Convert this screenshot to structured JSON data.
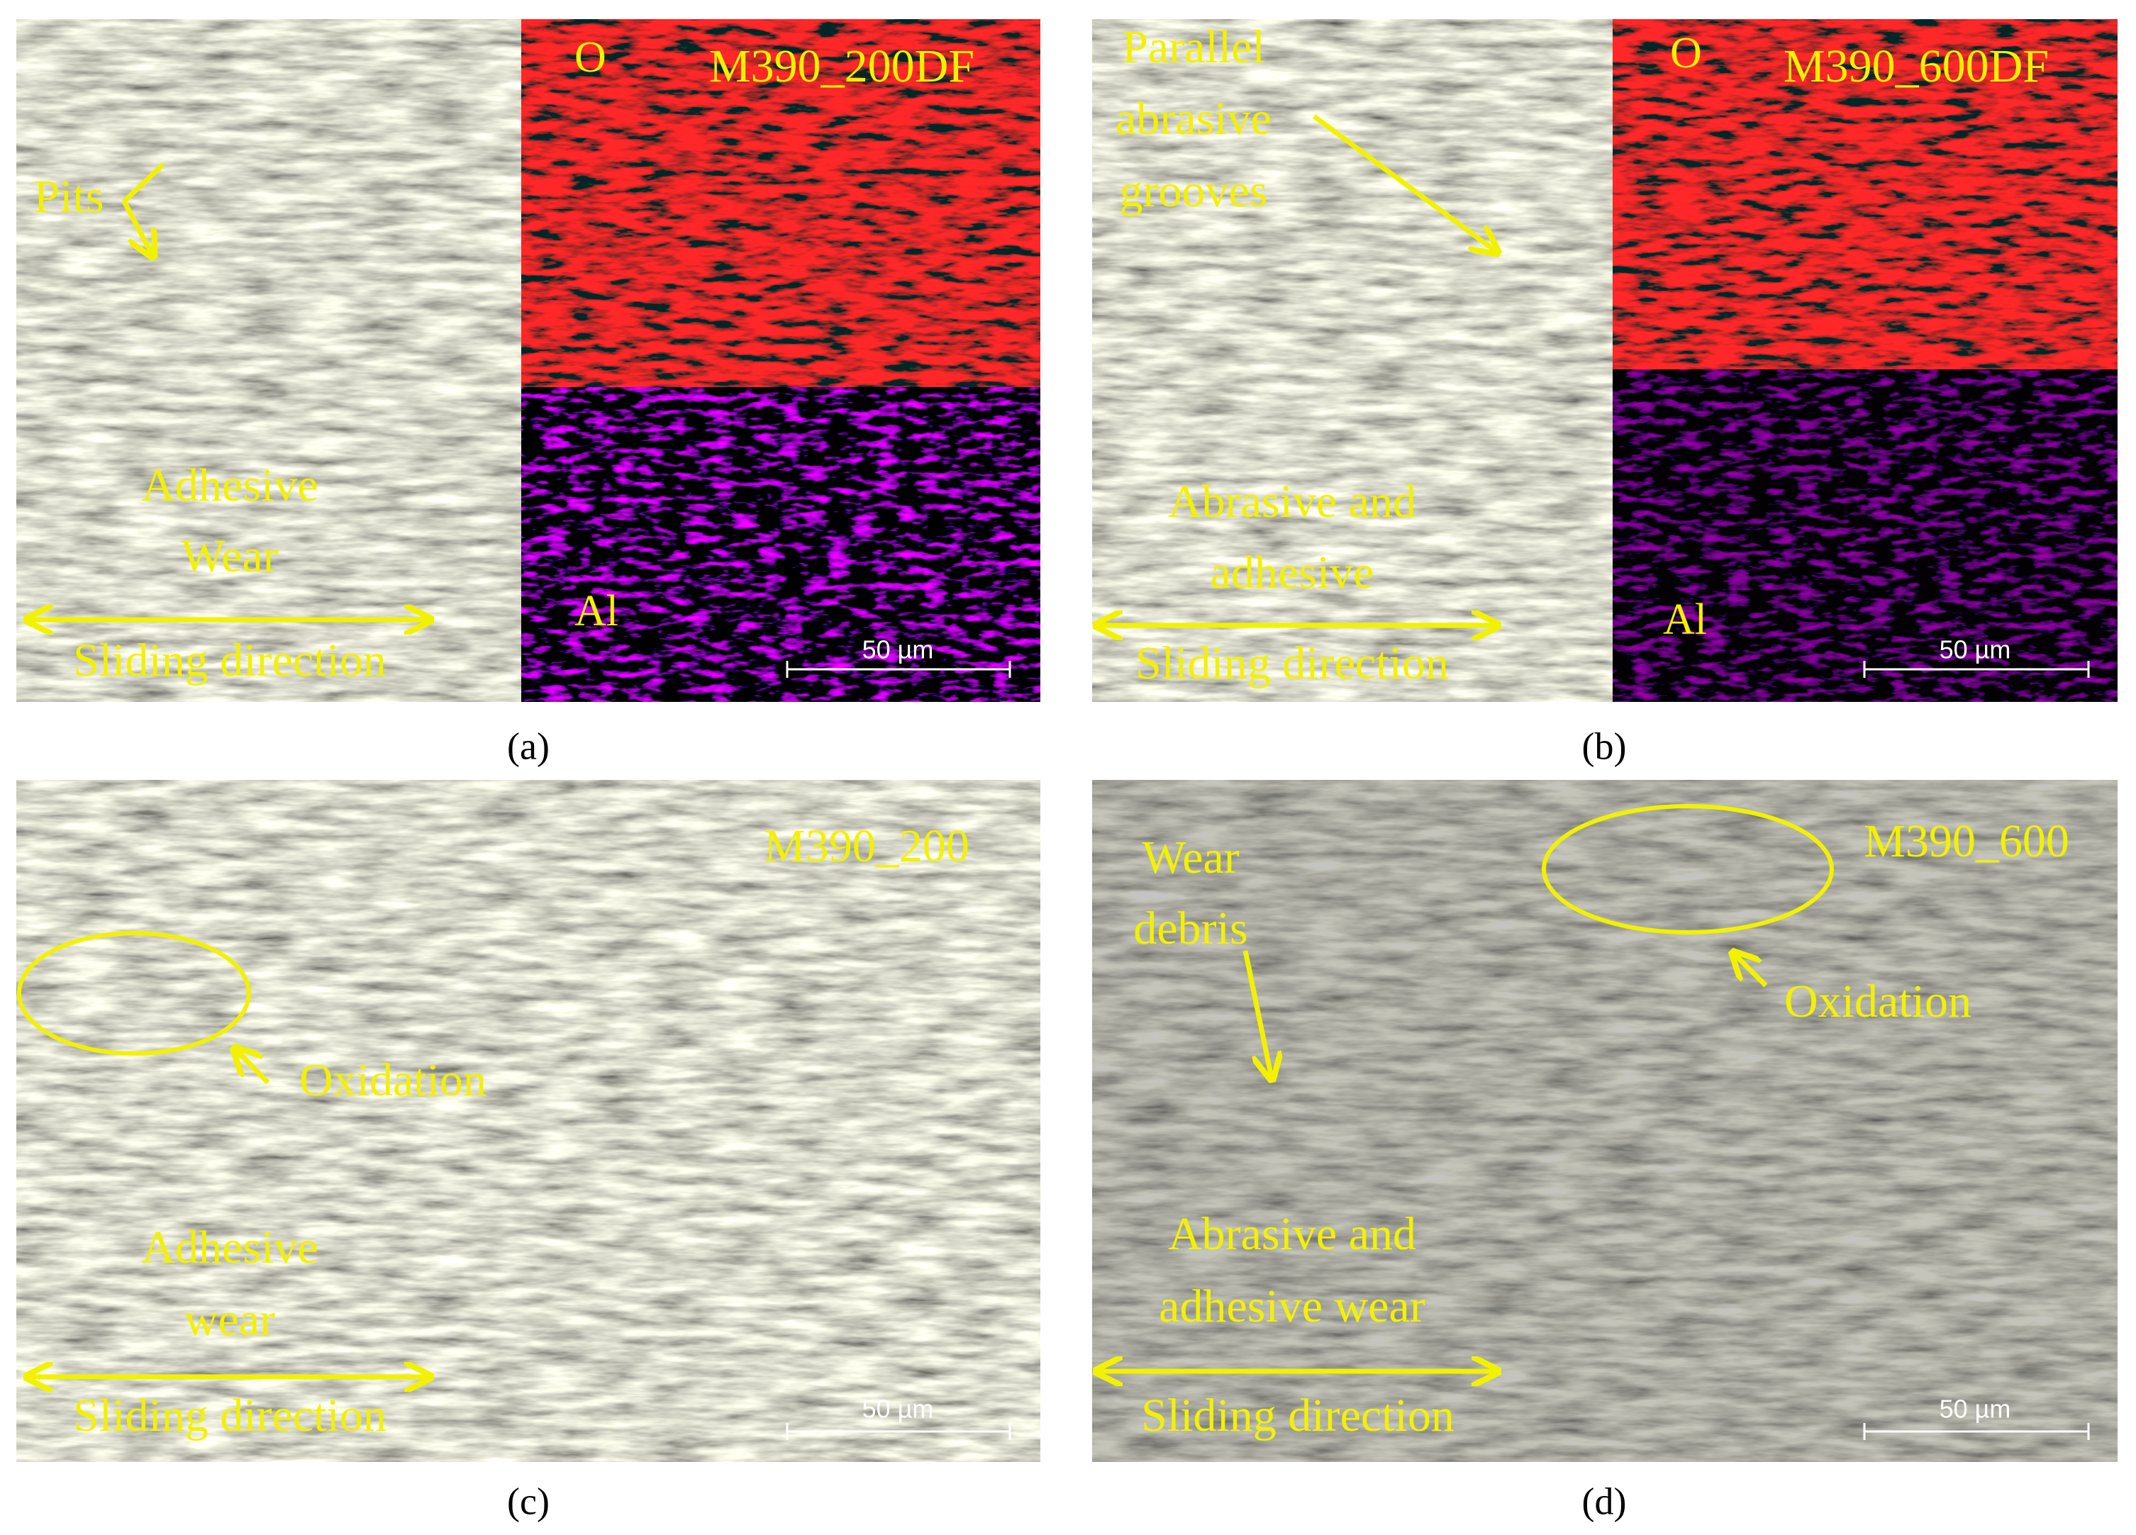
{
  "panels": [
    {
      "label": "(a)",
      "sample": "M390_200DF",
      "annotations": [
        "Pits",
        "Adhesive",
        "Wear",
        "Sliding direction"
      ],
      "map_labels": [
        "O",
        "Al"
      ],
      "scale_bar": "50 µm"
    },
    {
      "label": "(b)",
      "sample": "M390_600DF",
      "annotations": [
        "Parallel",
        "abrasive",
        "grooves",
        "Abrasive and",
        "adhesive",
        "Sliding direction"
      ],
      "map_labels": [
        "O",
        "Al"
      ],
      "scale_bar": "50 µm"
    },
    {
      "label": "(c)",
      "sample": "M390_200",
      "annotations": [
        "Oxidation",
        "Adhesive",
        "wear",
        "Sliding direction"
      ],
      "scale_bar": "50 µm"
    },
    {
      "label": "(d)",
      "sample": "M390_600",
      "annotations": [
        "Wear",
        "debris",
        "Oxidation",
        "Abrasive and",
        "adhesive wear",
        "Sliding direction"
      ],
      "scale_bar": "50 µm"
    }
  ]
}
